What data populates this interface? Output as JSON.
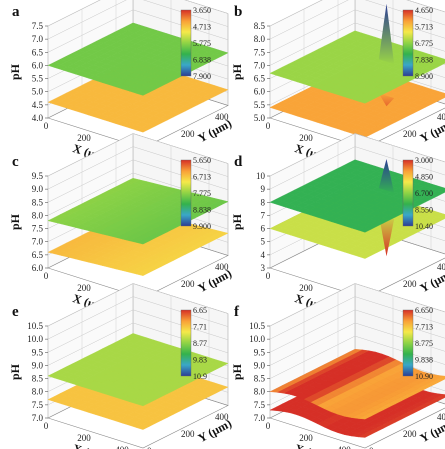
{
  "chart_data": [
    {
      "type": "surface3d",
      "panel_label": "a",
      "zlabel": "pH",
      "xlabel": "X (μm)",
      "ylabel": "Y (μm)",
      "z_ticks": [
        "4.0",
        "4.5",
        "5.0",
        "5.5",
        "6.0",
        "6.5",
        "7.0",
        "7.5"
      ],
      "x_ticks": [
        "0",
        "200",
        "400"
      ],
      "y_ticks": [
        "0",
        "200",
        "400"
      ],
      "colorbar_ticks": [
        "3.650",
        "4.713",
        "5.775",
        "6.838",
        "7.900"
      ],
      "surfaces": [
        {
          "level": 6.0,
          "feature": "flat"
        },
        {
          "level": 4.6,
          "feature": "flat"
        }
      ]
    },
    {
      "type": "surface3d",
      "panel_label": "b",
      "zlabel": "pH",
      "xlabel": "X (μm)",
      "ylabel": "Y (μm)",
      "z_ticks": [
        "5.0",
        "5.5",
        "6.0",
        "6.5",
        "7.0",
        "7.5",
        "8.0",
        "8.5"
      ],
      "x_ticks": [
        "0",
        "200",
        "400"
      ],
      "y_ticks": [
        "0",
        "200",
        "400"
      ],
      "colorbar_ticks": [
        "4.650",
        "5.713",
        "6.775",
        "7.838",
        "8.900"
      ],
      "surfaces": [
        {
          "level": 6.7,
          "feature": "alkaline peak",
          "extreme": 8.9
        },
        {
          "level": 5.4,
          "feature": "acidic dip",
          "extreme": 5.0
        }
      ]
    },
    {
      "type": "surface3d",
      "panel_label": "c",
      "zlabel": "pH",
      "xlabel": "X (μm)",
      "ylabel": "Y (μm)",
      "z_ticks": [
        "6.0",
        "6.5",
        "7.0",
        "7.5",
        "8.0",
        "8.5",
        "9.0",
        "9.5"
      ],
      "x_ticks": [
        "0",
        "200",
        "400"
      ],
      "y_ticks": [
        "0",
        "200",
        "400"
      ],
      "colorbar_ticks": [
        "5.650",
        "6.713",
        "7.775",
        "8.838",
        "9.900"
      ],
      "surfaces": [
        {
          "level": 7.8,
          "feature": "gentle slope"
        },
        {
          "level": 6.6,
          "feature": "gentle slope"
        }
      ]
    },
    {
      "type": "surface3d",
      "panel_label": "d",
      "zlabel": "pH",
      "xlabel": "X (μm)",
      "ylabel": "Y (μm)",
      "z_ticks": [
        "3",
        "4",
        "5",
        "6",
        "7",
        "8",
        "9",
        "10"
      ],
      "x_ticks": [
        "0",
        "200",
        "400"
      ],
      "y_ticks": [
        "0",
        "200",
        "400"
      ],
      "colorbar_ticks": [
        "3.000",
        "4.850",
        "6.700",
        "8.550",
        "10.40"
      ],
      "surfaces": [
        {
          "level": 8.0,
          "feature": "alkaline peak",
          "extreme": 10.4
        },
        {
          "level": 6.0,
          "feature": "acidic dip",
          "extreme": 3.0
        }
      ]
    },
    {
      "type": "surface3d",
      "panel_label": "e",
      "zlabel": "pH",
      "xlabel": "X (μm)",
      "ylabel": "Y (μm)",
      "z_ticks": [
        "7.0",
        "7.5",
        "8.0",
        "8.5",
        "9.0",
        "9.5",
        "10.0",
        "10.5"
      ],
      "x_ticks": [
        "0",
        "200",
        "400"
      ],
      "y_ticks": [
        "0",
        "200",
        "400"
      ],
      "colorbar_ticks": [
        "6.65",
        "7.71",
        "8.77",
        "9.83",
        "10.9"
      ],
      "surfaces": [
        {
          "level": 8.6,
          "feature": "flat"
        },
        {
          "level": 7.7,
          "feature": "flat"
        }
      ]
    },
    {
      "type": "surface3d",
      "panel_label": "f",
      "zlabel": "pH",
      "xlabel": "X (μm)",
      "ylabel": "Y (μm)",
      "z_ticks": [
        "7.0",
        "7.5",
        "8.0",
        "8.5",
        "9.0",
        "9.5",
        "10.0",
        "10.5"
      ],
      "x_ticks": [
        "0",
        "200",
        "400"
      ],
      "y_ticks": [
        "0",
        "200",
        "400"
      ],
      "colorbar_ticks": [
        "6.650",
        "7.713",
        "8.775",
        "9.838",
        "10.90"
      ],
      "surfaces": [
        {
          "level": 8.1,
          "feature": "wavy"
        },
        {
          "level": 7.4,
          "feature": "wavy"
        }
      ]
    }
  ],
  "colormap": [
    "#d62f26",
    "#f9a037",
    "#f5e94a",
    "#8fd345",
    "#33b24c",
    "#3aa8c8",
    "#2c3d94"
  ]
}
